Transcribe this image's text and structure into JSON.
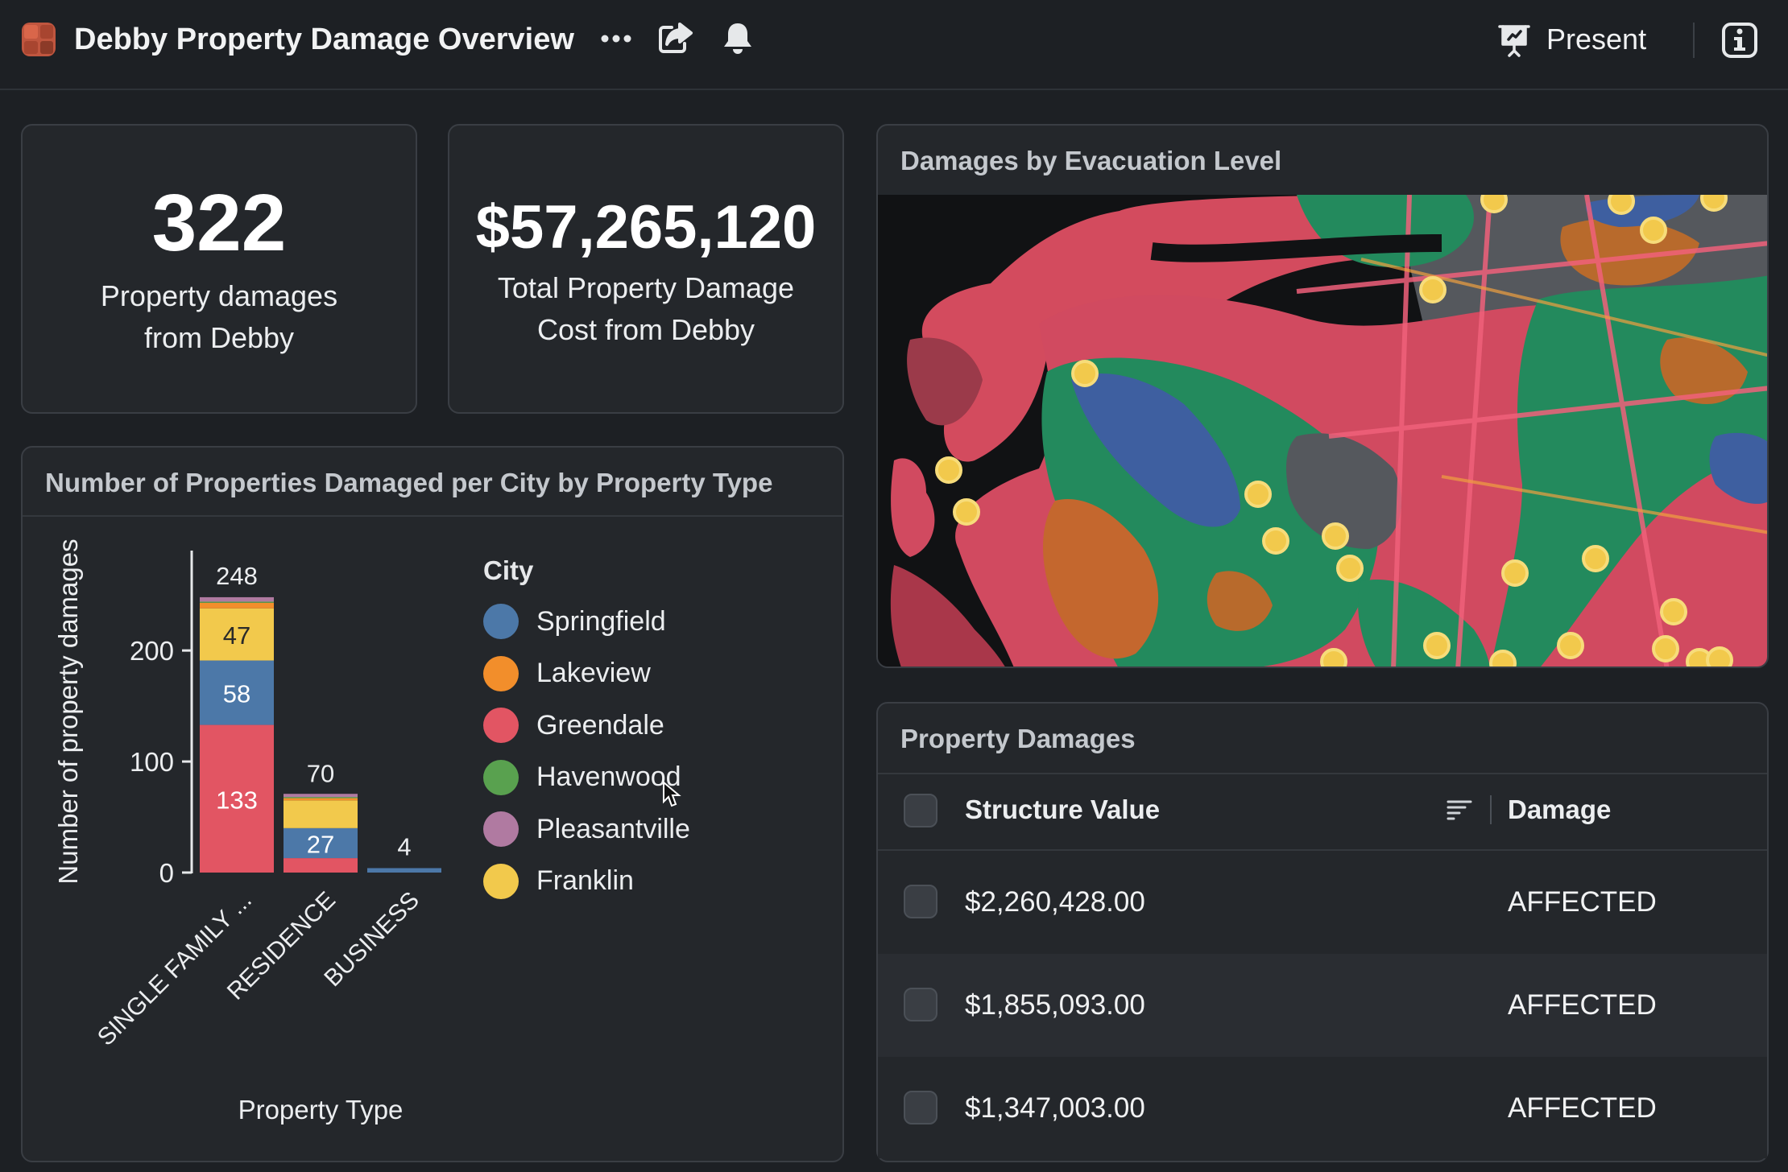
{
  "header": {
    "title": "Debby Property Damage Overview",
    "present_label": "Present"
  },
  "kpis": [
    {
      "value": "322",
      "label_line1": "Property damages",
      "label_line2": "from Debby"
    },
    {
      "value": "$57,265,120",
      "label_line1": "Total Property Damage",
      "label_line2": "Cost from Debby"
    }
  ],
  "chart_panel": {
    "title": "Number of Properties Damaged per City by Property Type",
    "legend_title": "City"
  },
  "chart_data": {
    "type": "bar",
    "stacked": true,
    "xlabel": "Property Type",
    "ylabel": "Number of property damages",
    "categories": [
      "SINGLE FAMILY ...",
      "RESIDENCE",
      "BUSINESS"
    ],
    "totals": [
      "248",
      "70",
      "4"
    ],
    "ylim": [
      0,
      290
    ],
    "yticks": [
      0,
      100,
      200
    ],
    "series": [
      {
        "name": "Greendale",
        "color": "#e25563",
        "values": [
          133,
          13,
          0
        ]
      },
      {
        "name": "Springfield",
        "color": "#4c78a8",
        "values": [
          58,
          27,
          4
        ]
      },
      {
        "name": "Franklin",
        "color": "#f2c94c",
        "values": [
          47,
          25,
          0
        ]
      },
      {
        "name": "Lakeview",
        "color": "#f28e2b",
        "values": [
          5,
          2,
          0
        ]
      },
      {
        "name": "Havenwood",
        "color": "#59a14f",
        "values": [
          1,
          1,
          0
        ]
      },
      {
        "name": "Pleasantville",
        "color": "#b07aa1",
        "values": [
          4,
          2,
          0
        ]
      }
    ],
    "bar_labels": {
      "0": {
        "0": "133",
        "1": "58",
        "2": "47"
      },
      "1": {
        "1": "27"
      }
    },
    "legend": [
      {
        "name": "Springfield",
        "color": "#4c78a8"
      },
      {
        "name": "Lakeview",
        "color": "#f28e2b"
      },
      {
        "name": "Greendale",
        "color": "#e25563"
      },
      {
        "name": "Havenwood",
        "color": "#59a14f"
      },
      {
        "name": "Pleasantville",
        "color": "#b07aa1"
      },
      {
        "name": "Franklin",
        "color": "#f2c94c"
      }
    ]
  },
  "map_panel": {
    "title": "Damages by Evacuation Level"
  },
  "table_panel": {
    "title": "Property Damages",
    "columns": [
      "Structure Value",
      "Damage"
    ],
    "rows": [
      {
        "structure_value": "$2,260,428.00",
        "damage": "AFFECTED"
      },
      {
        "structure_value": "$1,855,093.00",
        "damage": "AFFECTED"
      },
      {
        "structure_value": "$1,347,003.00",
        "damage": "AFFECTED"
      }
    ]
  }
}
